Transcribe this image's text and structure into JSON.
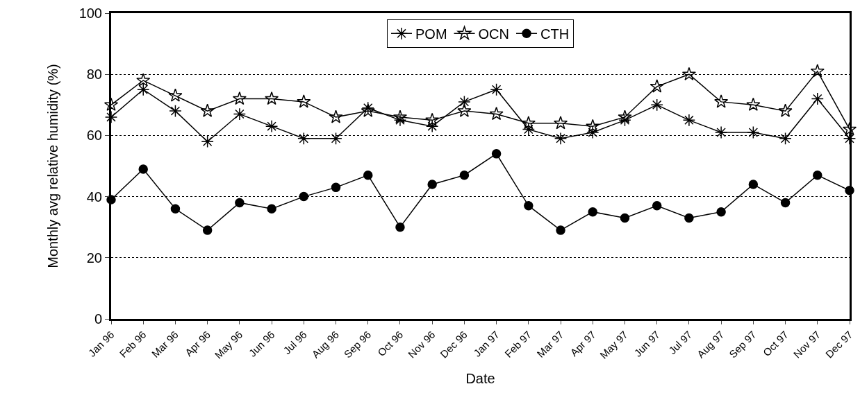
{
  "chart_data": {
    "type": "line",
    "xlabel": "Date",
    "ylabel": "Monthly avg relative humidity (%)",
    "categories": [
      "Jan 96",
      "Feb 96",
      "Mar 96",
      "Apr 96",
      "May 96",
      "Jun 96",
      "Jul 96",
      "Aug 96",
      "Sep 96",
      "Oct 96",
      "Nov 96",
      "Dec 96",
      "Jan 97",
      "Feb 97",
      "Mar 97",
      "Apr 97",
      "May 97",
      "Jun 97",
      "Jul 97",
      "Aug 97",
      "Sep 97",
      "Oct 97",
      "Nov 97",
      "Dec 97"
    ],
    "series": [
      {
        "name": "POM",
        "color": "#000000",
        "marker": "cross",
        "values": [
          66,
          75,
          68,
          58,
          67,
          63,
          59,
          59,
          69,
          65,
          63,
          71,
          75,
          62,
          59,
          61,
          65,
          70,
          65,
          61,
          61,
          59,
          72,
          59
        ]
      },
      {
        "name": "OCN",
        "color": "#000000",
        "marker": "star",
        "values": [
          70,
          78,
          73,
          68,
          72,
          72,
          71,
          66,
          68,
          66,
          65,
          68,
          67,
          64,
          64,
          63,
          66,
          76,
          80,
          71,
          70,
          68,
          81,
          62
        ]
      },
      {
        "name": "CTH",
        "color": "#000000",
        "marker": "circle",
        "values": [
          39,
          49,
          36,
          29,
          38,
          36,
          40,
          43,
          47,
          30,
          44,
          47,
          54,
          37,
          29,
          35,
          33,
          37,
          33,
          35,
          44,
          38,
          47,
          42
        ]
      }
    ],
    "ylim": [
      0,
      100
    ],
    "yticks": [
      0,
      20,
      40,
      60,
      80,
      100
    ],
    "grid": "y",
    "legend": "top",
    "line_style": "solid"
  }
}
